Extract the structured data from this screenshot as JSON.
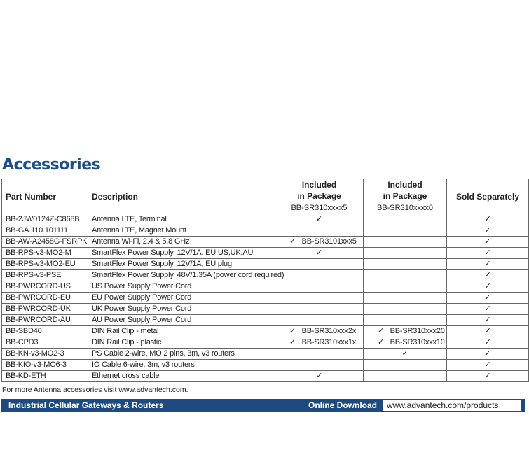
{
  "title": "Accessories",
  "headers": {
    "part": "Part Number",
    "desc": "Description",
    "inc5_1": "Included",
    "inc5_2": "in Package",
    "inc5_3": "BB-SR310xxxx5",
    "inc0_1": "Included",
    "inc0_2": "in Package",
    "inc0_3": "BB-SR310xxxx0",
    "sold": "Sold Separately"
  },
  "rows": [
    {
      "part": "BB-2JW0124Z-C868B",
      "desc": "Antenna LTE, Terminal",
      "inc5": "✓",
      "inc0": "",
      "sold": "✓"
    },
    {
      "part": "BB-GA.110.101111",
      "desc": "Antenna LTE, Magnet Mount",
      "inc5": "",
      "inc0": "",
      "sold": "✓"
    },
    {
      "part": "BB-AW-A2458G-FSRPK",
      "desc": "Antenna Wi-Fi, 2.4 & 5.8 GHz",
      "inc5": "✓   BB-SR3101xxx5",
      "inc0": "",
      "sold": "✓"
    },
    {
      "part": "BB-RPS-v3-MO2-M",
      "desc": "SmartFlex Power Supply, 12V/1A, EU,US,UK,AU",
      "inc5": "✓",
      "inc0": "",
      "sold": "✓"
    },
    {
      "part": "BB-RPS-v3-MO2-EU",
      "desc": "SmartFlex Power Supply, 12V/1A, EU plug",
      "inc5": "",
      "inc0": "",
      "sold": "✓"
    },
    {
      "part": "BB-RPS-v3-PSE",
      "desc": "SmartFlex Power Supply, 48V/1.35A (power cord required)",
      "inc5": "",
      "inc0": "",
      "sold": "✓"
    },
    {
      "part": "BB-PWRCORD-US",
      "desc": "US Power Supply Power Cord",
      "inc5": "",
      "inc0": "",
      "sold": "✓"
    },
    {
      "part": "BB-PWRCORD-EU",
      "desc": "EU Power Supply Power Cord",
      "inc5": "",
      "inc0": "",
      "sold": "✓"
    },
    {
      "part": "BB-PWRCORD-UK",
      "desc": "UK Power Supply Power Cord",
      "inc5": "",
      "inc0": "",
      "sold": "✓"
    },
    {
      "part": "BB-PWRCORD-AU",
      "desc": "AU Power Supply Power Cord",
      "inc5": "",
      "inc0": "",
      "sold": "✓"
    },
    {
      "part": "BB-SBD40",
      "desc": "DIN Rail Clip - metal",
      "inc5": "✓   BB-SR310xxx2x",
      "inc0": "✓   BB-SR310xxx20",
      "sold": "✓"
    },
    {
      "part": "BB-CPD3",
      "desc": "DIN Rail Clip - plastic",
      "inc5": "✓   BB-SR310xxx1x",
      "inc0": "✓   BB-SR310xxx10",
      "sold": "✓"
    },
    {
      "part": "BB-KN-v3-MO2-3",
      "desc": "PS Cable 2-wire, MO 2 pins, 3m, v3 routers",
      "inc5": "",
      "inc0": "✓",
      "sold": "✓"
    },
    {
      "part": "BB-KIO-v3-MO6-3",
      "desc": "IO Cable 6-wire, 3m, v3 routers",
      "inc5": "",
      "inc0": "",
      "sold": "✓"
    },
    {
      "part": "BB-KD-ETH",
      "desc": "Ethernet cross cable",
      "inc5": "✓",
      "inc0": "",
      "sold": "✓"
    }
  ],
  "note": "For more Antenna accessories visit www.advantech.com.",
  "footer": {
    "left": "Industrial Cellular Gateways & Routers",
    "download_label": "Online Download",
    "url": "www.advantech.com/products"
  },
  "colors": {
    "brand": "#1d4a80"
  }
}
